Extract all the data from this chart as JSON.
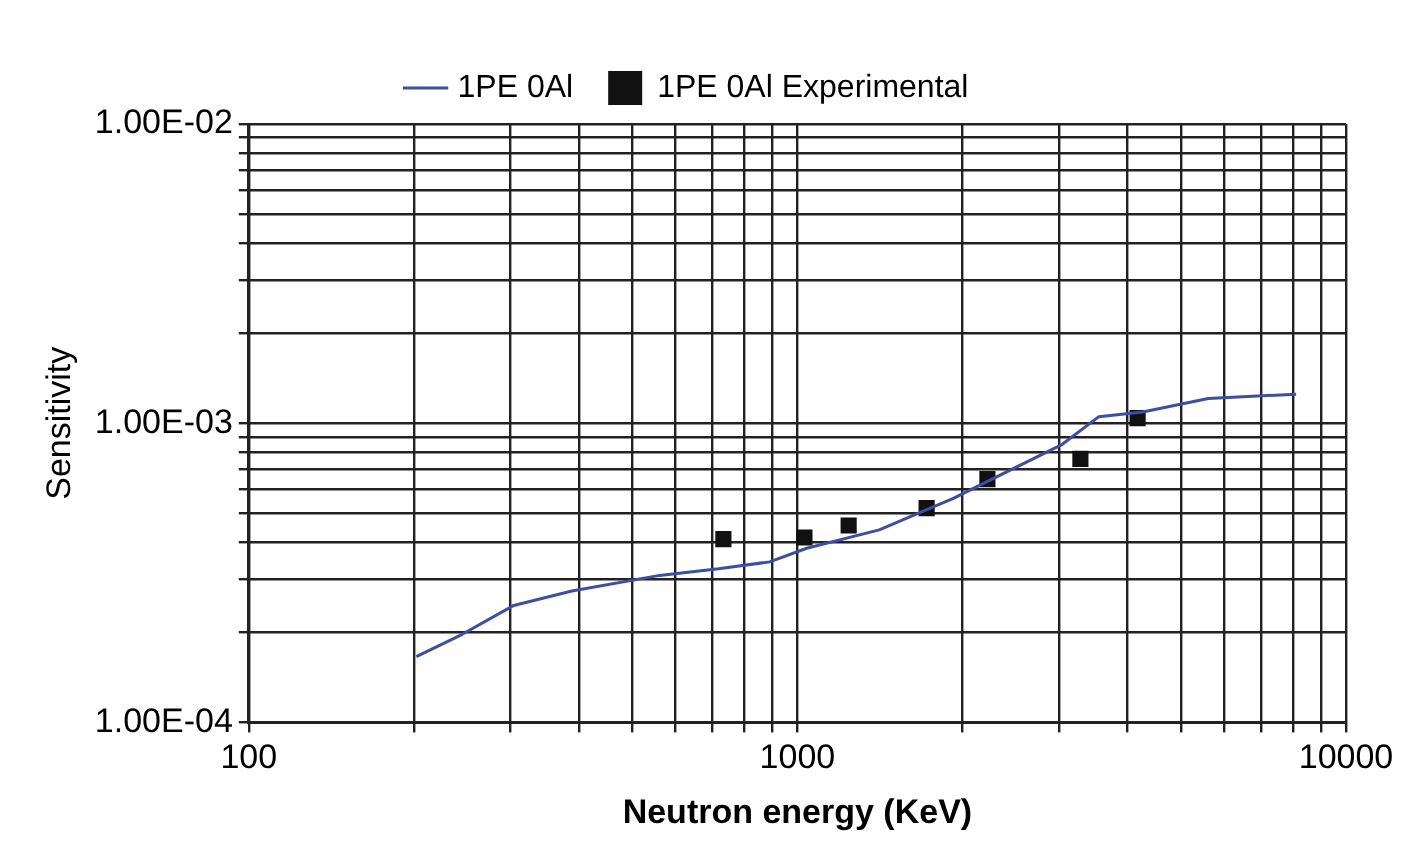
{
  "chart_data": {
    "type": "line",
    "xlabel": "Neutron energy (KeV)",
    "ylabel": "Sensitivity",
    "log": "xy",
    "grid": true,
    "legend": "top",
    "xlim": [
      100,
      10000
    ],
    "ylim": [
      0.0001,
      0.01
    ],
    "xticks": [
      100,
      {
        "value": 200,
        "label": null
      },
      {
        "value": 300,
        "label": null
      },
      {
        "value": 400,
        "label": null
      },
      {
        "value": 500,
        "label": null
      },
      {
        "value": 600,
        "label": null
      },
      {
        "value": 700,
        "label": null
      },
      {
        "value": 800,
        "label": null
      },
      {
        "value": 900,
        "label": null
      },
      1000,
      {
        "value": 2000,
        "label": null
      },
      {
        "value": 3000,
        "label": null
      },
      {
        "value": 4000,
        "label": null
      },
      {
        "value": 5000,
        "label": null
      },
      {
        "value": 6000,
        "label": null
      },
      {
        "value": 7000,
        "label": null
      },
      {
        "value": 8000,
        "label": null
      },
      {
        "value": 9000,
        "label": null
      },
      10000
    ],
    "yticks": [
      {
        "value": 0.0001,
        "label": "1.00E-04"
      },
      {
        "value": 0.0002,
        "label": null
      },
      {
        "value": 0.0003,
        "label": null
      },
      {
        "value": 0.0004,
        "label": null
      },
      {
        "value": 0.0005,
        "label": null
      },
      {
        "value": 0.0006,
        "label": null
      },
      {
        "value": 0.0007,
        "label": null
      },
      {
        "value": 0.0008,
        "label": null
      },
      {
        "value": 0.0009,
        "label": null
      },
      {
        "value": 0.001,
        "label": "1.00E-03"
      },
      {
        "value": 0.002,
        "label": null
      },
      {
        "value": 0.003,
        "label": null
      },
      {
        "value": 0.004,
        "label": null
      },
      {
        "value": 0.005,
        "label": null
      },
      {
        "value": 0.006,
        "label": null
      },
      {
        "value": 0.007,
        "label": null
      },
      {
        "value": 0.008,
        "label": null
      },
      {
        "value": 0.009,
        "label": null
      },
      {
        "value": 0.01,
        "label": "1.00E-02"
      }
    ],
    "series": [
      {
        "name": "1PE 0Al",
        "color": "#3d4fa0",
        "marker": "none",
        "line_style": "solid",
        "x": [
          202,
          245,
          304,
          388,
          561,
          718,
          890,
          1040,
          1410,
          1920,
          2610,
          3040,
          3540,
          4260,
          5610,
          8110
        ],
        "values": [
          0.000166,
          0.000197,
          0.000246,
          0.000275,
          0.00031,
          0.000326,
          0.000344,
          0.000382,
          0.00044,
          0.00056,
          0.00074,
          0.00085,
          0.00105,
          0.00109,
          0.00121,
          0.00125
        ]
      },
      {
        "name": "1PE 0Al Experimental",
        "type": "scatter",
        "color": "#111111",
        "marker": "square",
        "x": [
          733,
          1030,
          1240,
          1720,
          2220,
          3280,
          4170
        ],
        "values": [
          0.00041,
          0.000415,
          0.000455,
          0.00052,
          0.00065,
          0.00076,
          0.00104
        ]
      }
    ]
  }
}
